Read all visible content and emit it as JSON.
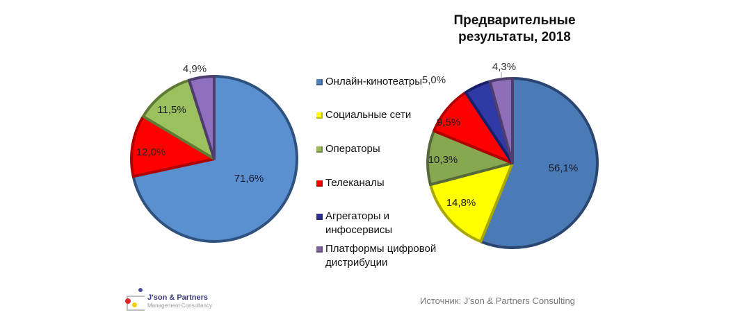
{
  "title": "Предварительные\nрезультаты, 2018",
  "legend": [
    {
      "label": "Онлайн-кинотеатры",
      "color": "#4f81bd"
    },
    {
      "label": "Социальные сети",
      "color": "#ffff00"
    },
    {
      "label": "Операторы",
      "color": "#9bbb59"
    },
    {
      "label": "Телеканалы",
      "color": "#ff0000"
    },
    {
      "label": "Агрегаторы и\nинфосервисы",
      "color": "#2e3192"
    },
    {
      "label": "Платформы цифровой\nдистрибуции",
      "color": "#8064a2"
    }
  ],
  "source": "Источник: J’son & Partners Consulting",
  "logo": {
    "name": "J'son & Partners",
    "subtitle": "Management Consultancy"
  },
  "chart_data": [
    {
      "type": "pie",
      "title": "",
      "categories": [
        "Онлайн-кинотеатры",
        "Телеканалы",
        "Операторы",
        "Платформы цифровой дистрибуции"
      ],
      "values": [
        71.6,
        12.0,
        11.5,
        4.9
      ],
      "labels": [
        "71,6%",
        "12,0%",
        "11,5%",
        "4,9%"
      ],
      "colors": [
        "#5a8fd0",
        "#ff0000",
        "#9bc15e",
        "#8f6fbf"
      ],
      "edge_colors": [
        "#2f527e",
        "#b00000",
        "#5e7a34",
        "#4f3d6e"
      ]
    },
    {
      "type": "pie",
      "title": "Предварительные результаты, 2018",
      "categories": [
        "Онлайн-кинотеатры",
        "Социальные сети",
        "Операторы",
        "Телеканалы",
        "Агрегаторы и инфосервисы",
        "Платформы цифровой дистрибуции"
      ],
      "values": [
        56.1,
        14.8,
        10.3,
        9.5,
        5.0,
        4.3
      ],
      "labels": [
        "56,1%",
        "14,8%",
        "10,3%",
        "9,5%",
        "5,0%",
        "4,3%"
      ],
      "colors": [
        "#4a7bb7",
        "#ffff00",
        "#88a751",
        "#ff0000",
        "#2f3aa6",
        "#8d6fb9"
      ],
      "edge_colors": [
        "#2a4670",
        "#a8a800",
        "#55693a",
        "#b00000",
        "#1a1f6a",
        "#4f3d6e"
      ]
    }
  ]
}
